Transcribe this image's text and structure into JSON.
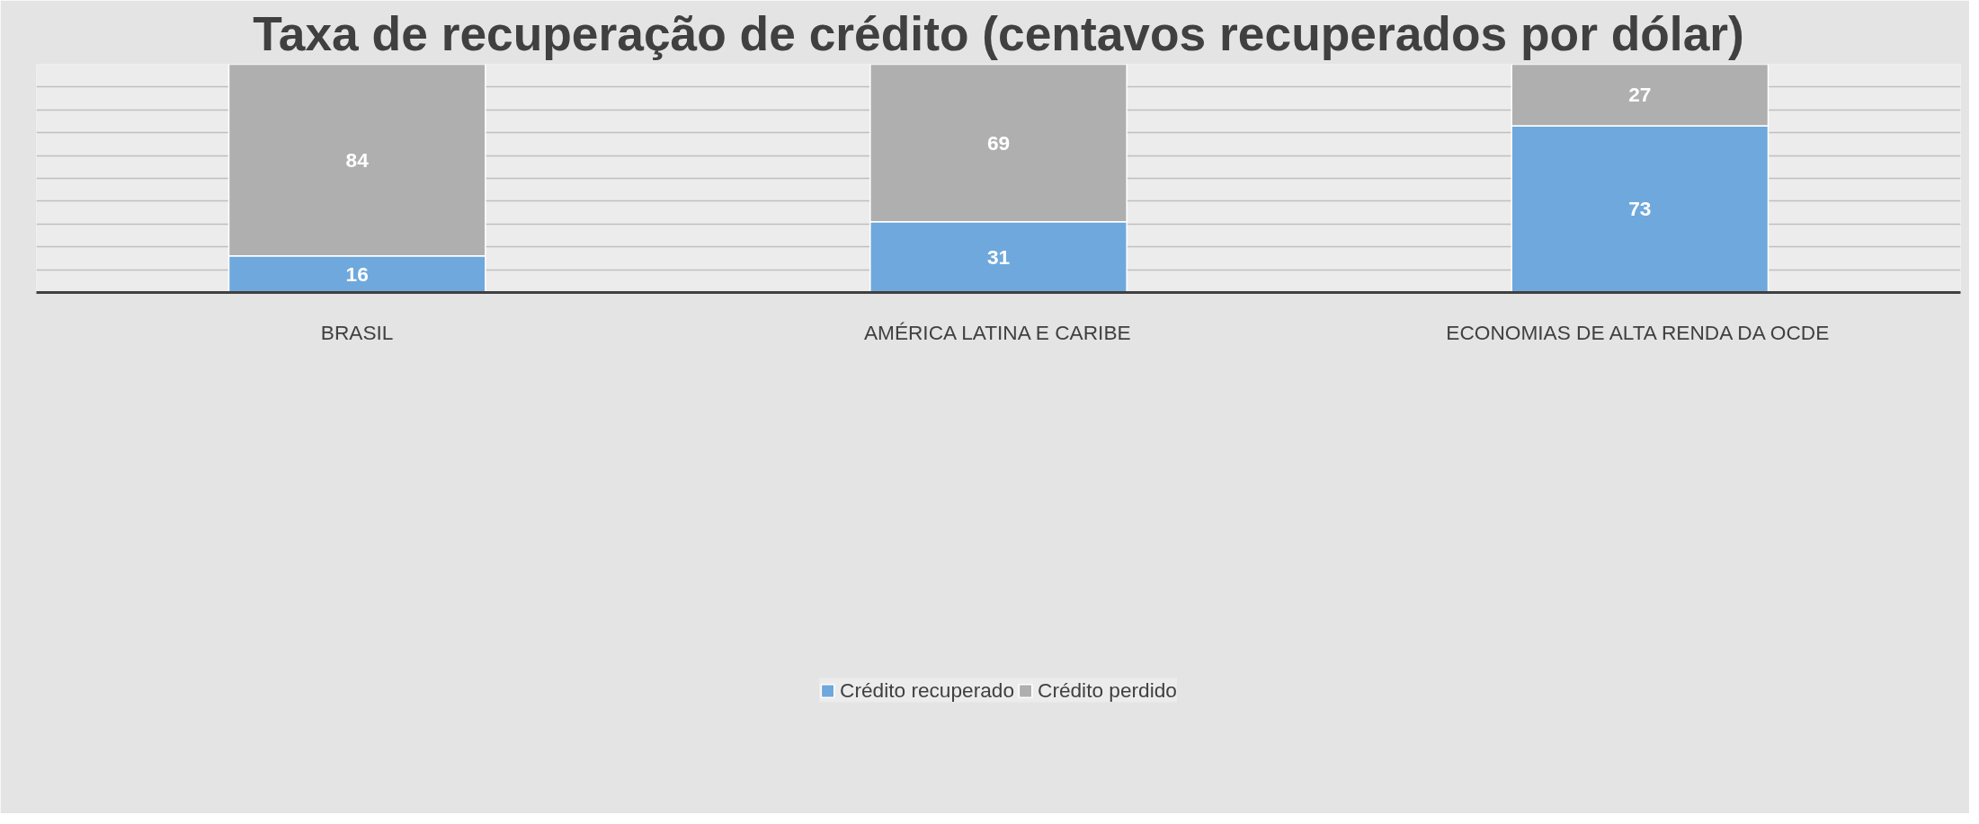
{
  "chart_data": {
    "type": "bar",
    "title": "Taxa de recuperação de crédito (centavos recuperados por dólar)",
    "categories": [
      "BRASIL",
      "AMÉRICA LATINA E CARIBE",
      "ECONOMIAS DE ALTA RENDA DA OCDE"
    ],
    "stacked": true,
    "series": [
      {
        "name": "Crédito recuperado",
        "color": "#6fa8dc",
        "values": [
          16,
          31,
          73
        ]
      },
      {
        "name": "Crédito perdido",
        "color": "#afafaf",
        "values": [
          84,
          69,
          27
        ]
      }
    ],
    "ylim": [
      0,
      100
    ],
    "yticks": [
      {
        "value": 0,
        "label": null
      },
      {
        "value": 10,
        "label": null
      },
      {
        "value": 20,
        "label": null
      },
      {
        "value": 30,
        "label": null
      },
      {
        "value": 40,
        "label": null
      },
      {
        "value": 50,
        "label": null
      },
      {
        "value": 60,
        "label": null
      },
      {
        "value": 70,
        "label": null
      },
      {
        "value": 80,
        "label": null
      },
      {
        "value": 90,
        "label": null
      },
      {
        "value": 100,
        "label": null
      }
    ],
    "tick_labels": "x",
    "grid": "y",
    "data_labels": true,
    "legend": "bottom"
  }
}
